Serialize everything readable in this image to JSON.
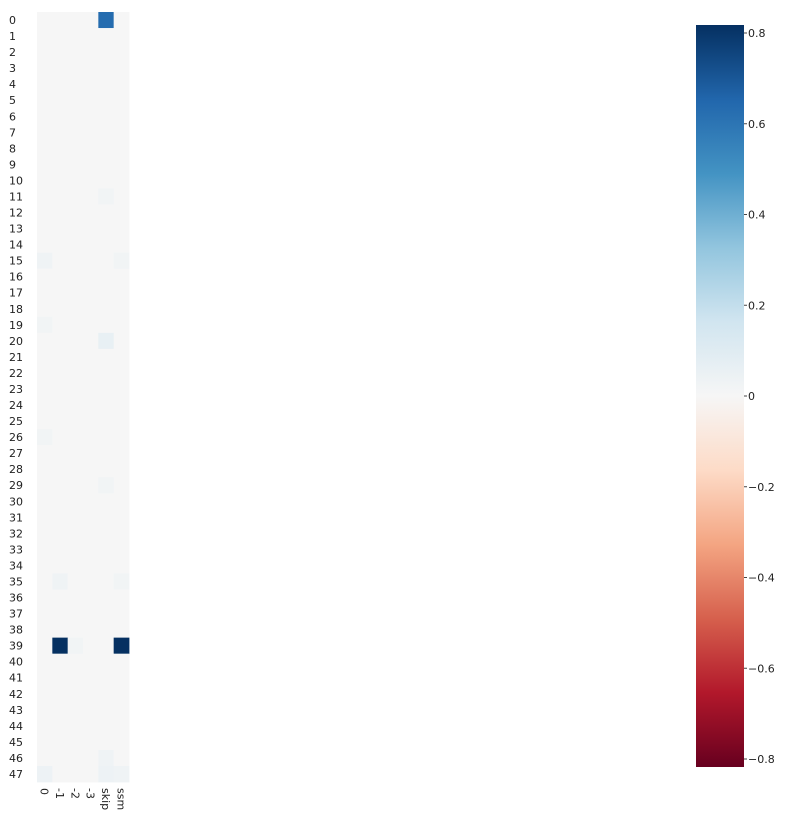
{
  "chart_data": {
    "type": "heatmap",
    "title": "",
    "xlabel": "",
    "ylabel": "",
    "x_categories": [
      "0",
      "-1",
      "-2",
      "-3",
      "skip",
      "ssm"
    ],
    "y_categories": [
      "0",
      "1",
      "2",
      "3",
      "4",
      "5",
      "6",
      "7",
      "8",
      "9",
      "10",
      "11",
      "12",
      "13",
      "14",
      "15",
      "16",
      "17",
      "18",
      "19",
      "20",
      "21",
      "22",
      "23",
      "24",
      "25",
      "26",
      "27",
      "28",
      "29",
      "30",
      "31",
      "32",
      "33",
      "34",
      "35",
      "36",
      "37",
      "38",
      "39",
      "40",
      "41",
      "42",
      "43",
      "44",
      "45",
      "46",
      "47"
    ],
    "default_value": 0.0,
    "cells": [
      {
        "row": "0",
        "col": "skip",
        "value": 0.62
      },
      {
        "row": "11",
        "col": "skip",
        "value": 0.02
      },
      {
        "row": "15",
        "col": "0",
        "value": 0.03
      },
      {
        "row": "15",
        "col": "ssm",
        "value": 0.02
      },
      {
        "row": "19",
        "col": "0",
        "value": 0.02
      },
      {
        "row": "20",
        "col": "skip",
        "value": 0.06
      },
      {
        "row": "26",
        "col": "0",
        "value": 0.02
      },
      {
        "row": "29",
        "col": "skip",
        "value": 0.02
      },
      {
        "row": "35",
        "col": "-1",
        "value": 0.03
      },
      {
        "row": "35",
        "col": "ssm",
        "value": 0.02
      },
      {
        "row": "39",
        "col": "-1",
        "value": 0.82
      },
      {
        "row": "39",
        "col": "-2",
        "value": 0.02
      },
      {
        "row": "39",
        "col": "ssm",
        "value": 0.82
      },
      {
        "row": "46",
        "col": "skip",
        "value": 0.03
      },
      {
        "row": "47",
        "col": "0",
        "value": 0.04
      },
      {
        "row": "47",
        "col": "skip",
        "value": 0.04
      },
      {
        "row": "47",
        "col": "ssm",
        "value": 0.03
      }
    ],
    "colorscale": "RdBu",
    "colorbar": {
      "range": [
        -0.8,
        0.8
      ],
      "ticks": [
        0.8,
        0.6,
        0.4,
        0.2,
        0,
        -0.2,
        -0.4,
        -0.6,
        -0.8
      ],
      "tick_labels": [
        "0.8",
        "0.6",
        "0.4",
        "0.2",
        "0",
        "−0.2",
        "−0.4",
        "−0.6",
        "−0.8"
      ]
    }
  }
}
